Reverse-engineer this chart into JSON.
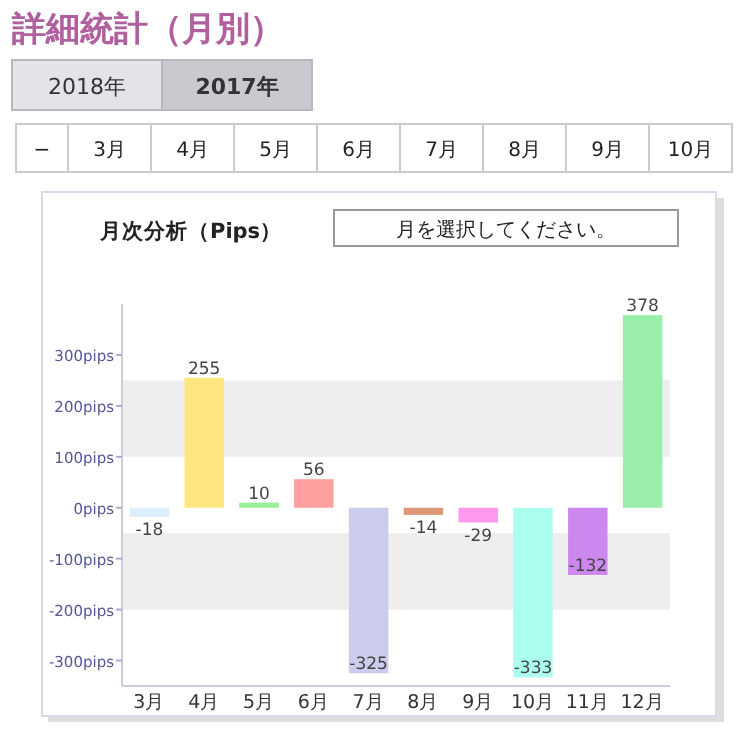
{
  "chart_data": {
    "type": "bar",
    "title": "詳細統計（月別）",
    "subtitle": "月次分析（Pips）",
    "annotations": [
      "2018年",
      "2017年",
      "−",
      "3月",
      "4月",
      "5月",
      "6月",
      "7月",
      "8月",
      "9月",
      "10月",
      "月を選択してください。"
    ],
    "categories": [
      "3月",
      "4月",
      "5月",
      "6月",
      "7月",
      "8月",
      "9月",
      "10月",
      "11月",
      "12月"
    ],
    "values": [
      -18,
      255,
      10,
      56,
      -325,
      -14,
      -29,
      -333,
      -132,
      378
    ],
    "colors": [
      "#ddeeff",
      "#ffe680",
      "#99ee99",
      "#ffa0a0",
      "#ccccee",
      "#dd9977",
      "#ff99ee",
      "#aaffee",
      "#cc88ee",
      "#99eeaa"
    ],
    "data_labels": true,
    "ylim": [
      -350,
      400
    ],
    "yticks": [
      {
        "value": -300,
        "label": "-300pips"
      },
      {
        "value": -200,
        "label": "-200pips"
      },
      {
        "value": -100,
        "label": "-100pips"
      },
      {
        "value": 0,
        "label": "0pips"
      },
      {
        "value": 100,
        "label": "100pips"
      },
      {
        "value": 200,
        "label": "200pips"
      },
      {
        "value": 300,
        "label": "300pips"
      }
    ],
    "bands": [
      {
        "axis": "y",
        "from": 100,
        "to": 250,
        "color": "#eeeeee"
      },
      {
        "axis": "y",
        "from": -200,
        "to": -50,
        "color": "#eeeeee"
      }
    ],
    "grid": false
  }
}
